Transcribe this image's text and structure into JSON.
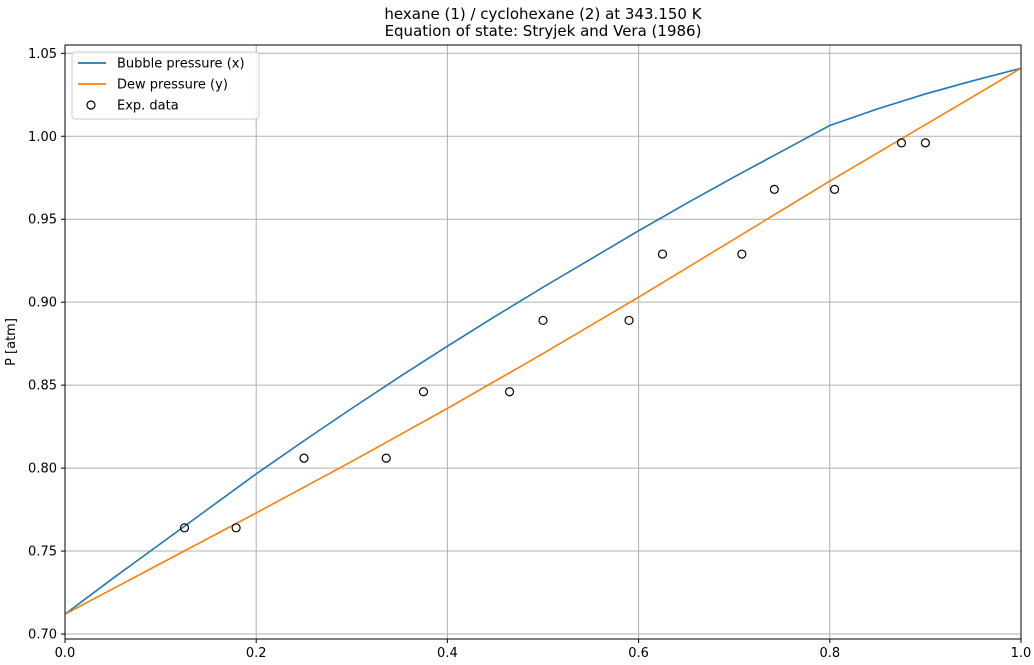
{
  "chart_data": {
    "type": "line",
    "title_line1": "hexane (1) / cyclohexane (2) at 343.150 K",
    "title_line2": "Equation of state: Stryjek and Vera (1986)",
    "xlabel": "",
    "ylabel": "P [atm]",
    "xlim": [
      0.0,
      1.0
    ],
    "ylim": [
      0.697,
      1.055
    ],
    "xticks": [
      "0.0",
      "0.2",
      "0.4",
      "0.6",
      "0.8",
      "1.0"
    ],
    "yticks": [
      "0.70",
      "0.75",
      "0.80",
      "0.85",
      "0.90",
      "0.95",
      "1.00",
      "1.05"
    ],
    "grid": true,
    "legend_position": "top-left",
    "series": [
      {
        "name": "Bubble pressure (x)",
        "color": "#1f77b4",
        "x": [
          0.0,
          0.05,
          0.1,
          0.15,
          0.2,
          0.25,
          0.3,
          0.35,
          0.4,
          0.45,
          0.5,
          0.55,
          0.6,
          0.65,
          0.7,
          0.75,
          0.8,
          0.85,
          0.9,
          0.95,
          1.0
        ],
        "y": [
          0.712,
          0.7335,
          0.7545,
          0.7755,
          0.7965,
          0.8165,
          0.836,
          0.855,
          0.8735,
          0.8915,
          0.909,
          0.926,
          0.943,
          0.9595,
          0.9755,
          0.991,
          1.0065,
          1.0165,
          1.0255,
          1.0335,
          1.041
        ]
      },
      {
        "name": "Dew pressure (y)",
        "color": "#ff7f0e",
        "x": [
          0.0,
          0.1,
          0.2,
          0.3,
          0.4,
          0.5,
          0.6,
          0.7,
          0.8,
          0.9,
          1.0
        ],
        "y": [
          0.712,
          0.7425,
          0.773,
          0.804,
          0.836,
          0.869,
          0.903,
          0.938,
          0.973,
          1.007,
          1.041
        ]
      },
      {
        "name": "Exp. data",
        "marker": "open-circle",
        "x": [
          0.125,
          0.179,
          0.25,
          0.336,
          0.375,
          0.465,
          0.5,
          0.59,
          0.625,
          0.708,
          0.742,
          0.805,
          0.875,
          0.9
        ],
        "y": [
          0.764,
          0.764,
          0.806,
          0.806,
          0.846,
          0.846,
          0.889,
          0.889,
          0.929,
          0.929,
          0.968,
          0.968,
          0.996,
          0.996
        ]
      }
    ]
  }
}
